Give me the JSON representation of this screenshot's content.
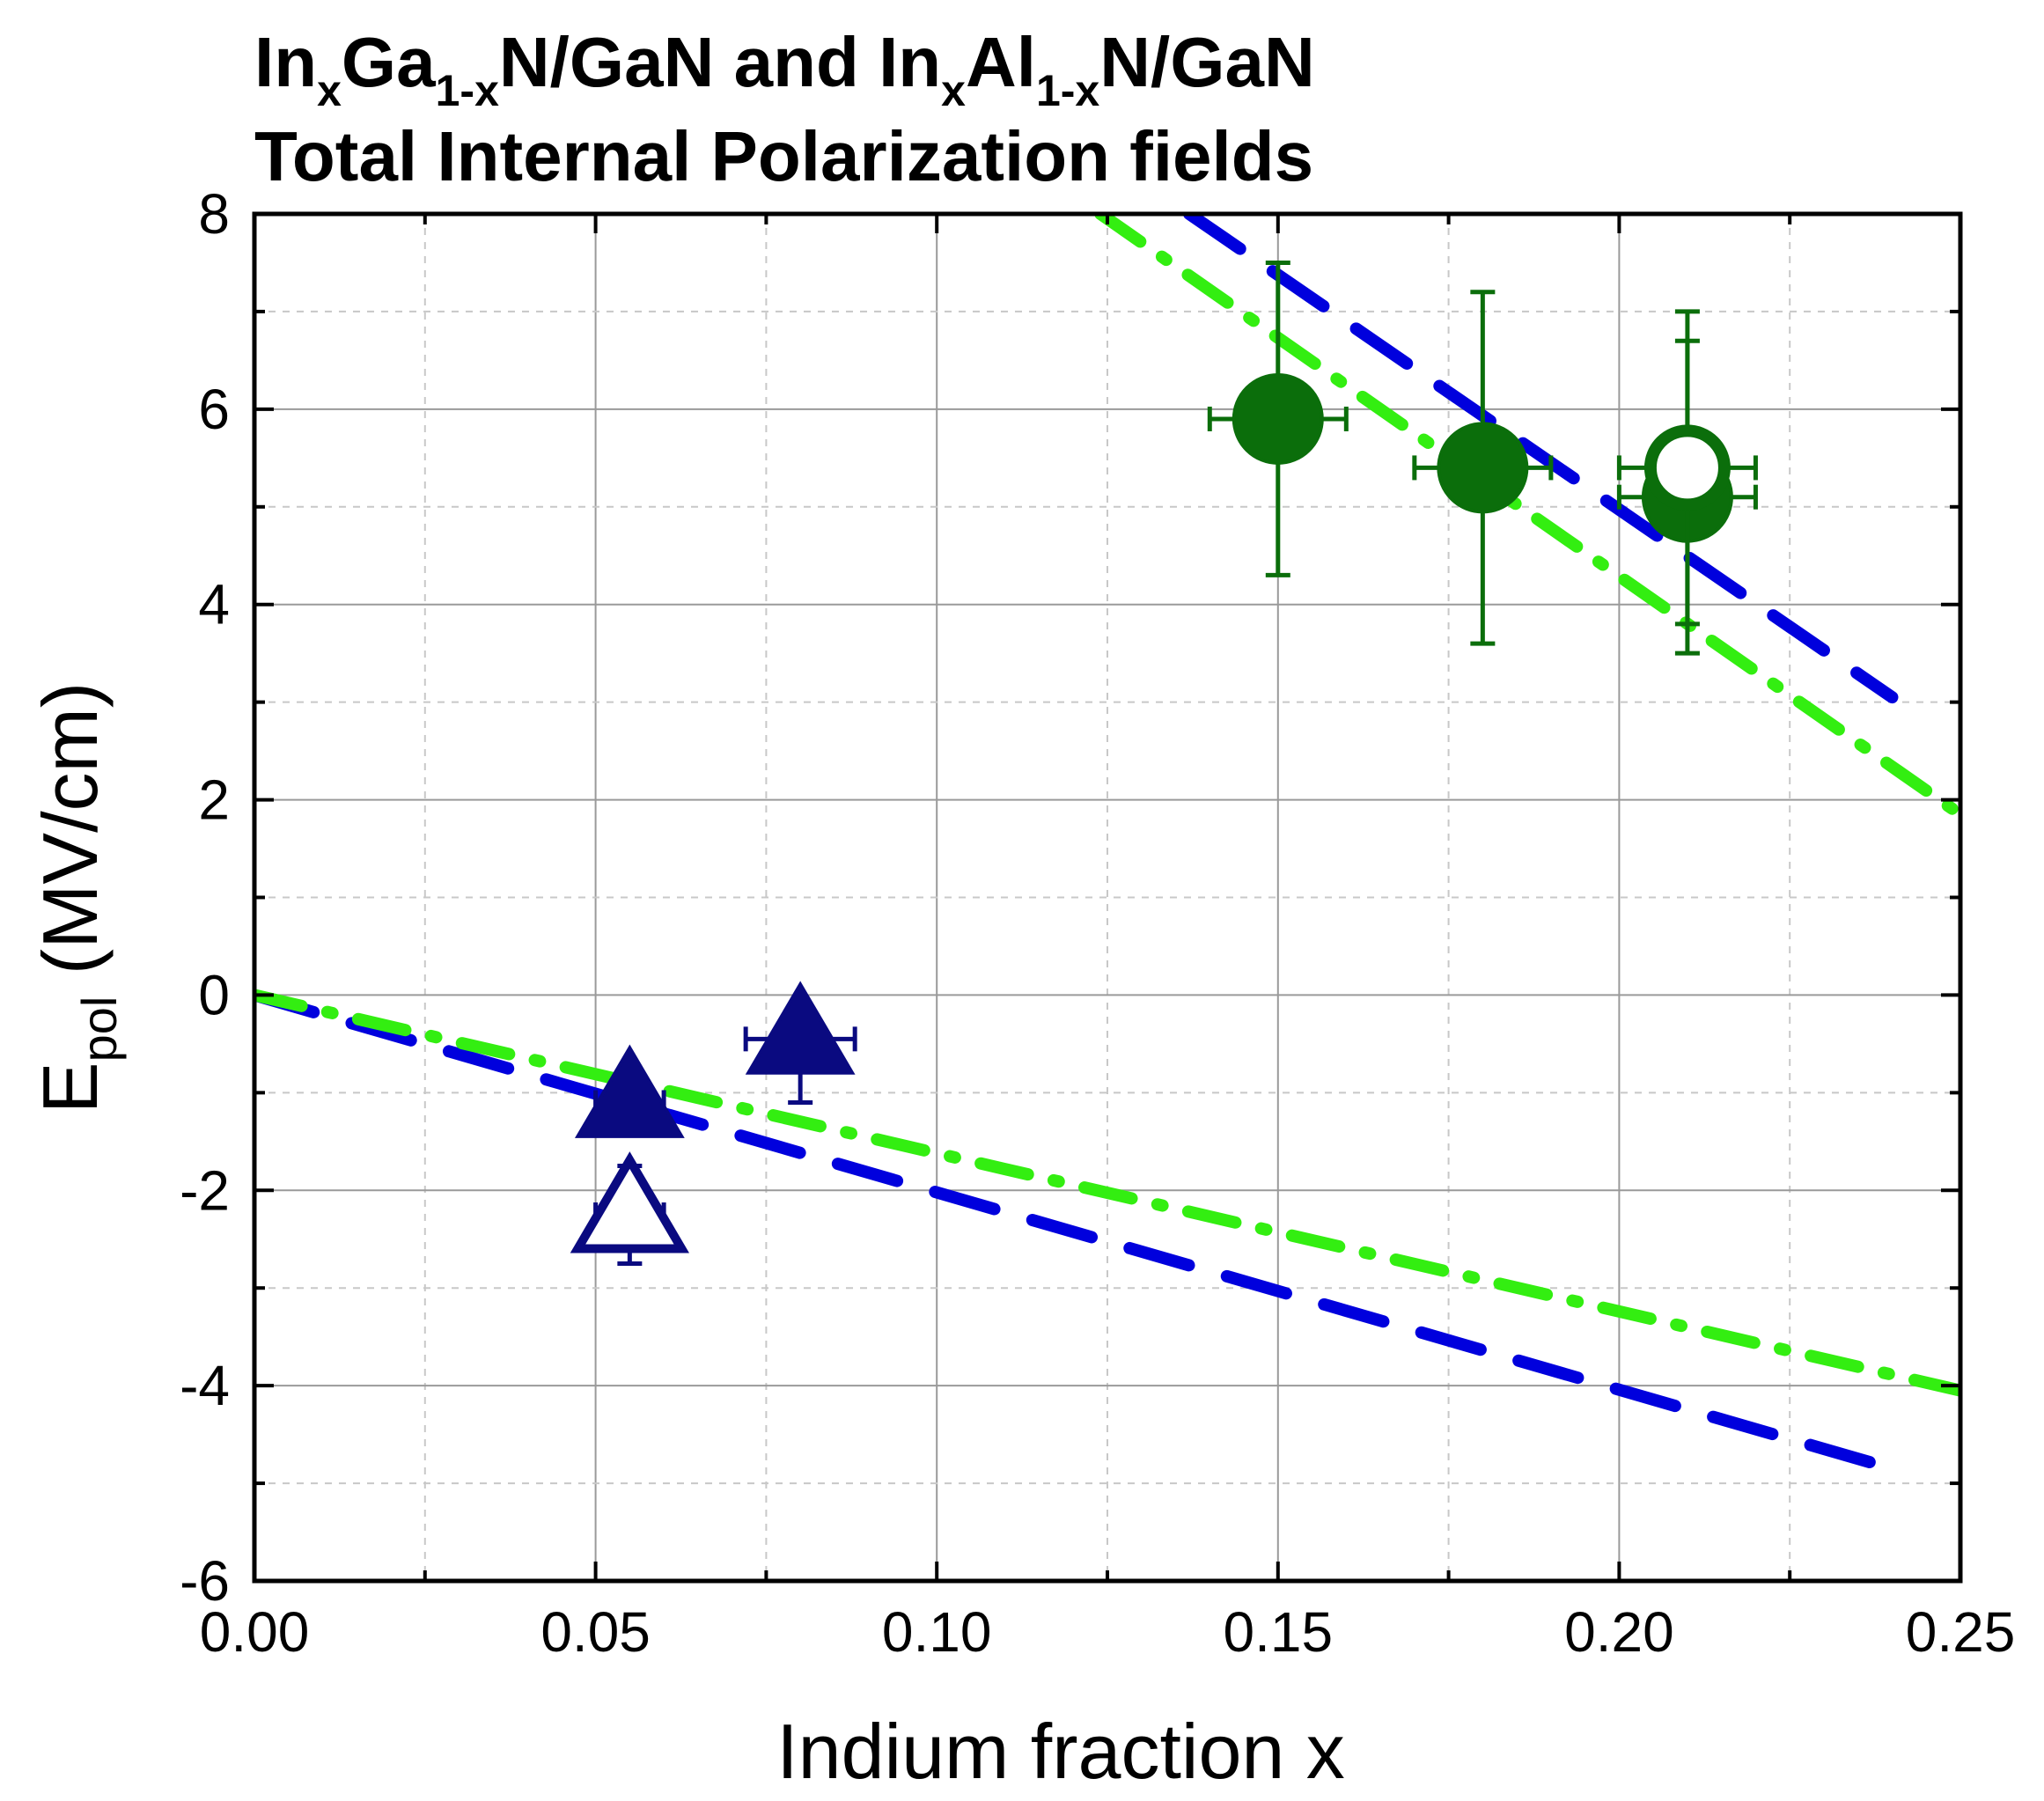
{
  "chart_data": {
    "type": "scatter",
    "title": {
      "line1": [
        {
          "text": "In",
          "sub": false
        },
        {
          "text": "x",
          "sub": true
        },
        {
          "text": "Ga",
          "sub": false
        },
        {
          "text": "1-x",
          "sub": true
        },
        {
          "text": "N/GaN and In",
          "sub": false
        },
        {
          "text": "x",
          "sub": true
        },
        {
          "text": "Al",
          "sub": false
        },
        {
          "text": "1-x",
          "sub": true
        },
        {
          "text": "N/GaN",
          "sub": false
        }
      ],
      "line2": "Total Internal Polarization fields"
    },
    "xlabel": "Indium fraction x",
    "ylabel": {
      "main": "E",
      "sub": "pol",
      "unit": " (MV/cm)"
    },
    "xlim": [
      0.0,
      0.25
    ],
    "ylim": [
      -6,
      8
    ],
    "xticks": [
      0.0,
      0.05,
      0.1,
      0.15,
      0.2,
      0.25
    ],
    "xtick_labels": [
      "0.00",
      "0.05",
      "0.10",
      "0.15",
      "0.20",
      "0.25"
    ],
    "yticks": [
      -6,
      -4,
      -2,
      0,
      2,
      4,
      6,
      8
    ],
    "ytick_labels": [
      "-6",
      "-4",
      "-2",
      "0",
      "2",
      "4",
      "6",
      "8"
    ],
    "grid": true,
    "colors": {
      "blue_line": "#0000dd",
      "green_line": "#33ee11",
      "navy_marker": "#0a0a80",
      "green_marker": "#0b6e0b",
      "grid_major": "#9a9a9a",
      "grid_minor": "#c8c8c8"
    },
    "lines": [
      {
        "name": "InGaN blue dashed",
        "style": "dash",
        "color_key": "blue_line",
        "x": [
          0.0,
          0.24
        ],
        "y": [
          0.0,
          -4.85
        ]
      },
      {
        "name": "InGaN green dash-dot",
        "style": "dashdot",
        "color_key": "green_line",
        "x": [
          0.0,
          0.25
        ],
        "y": [
          0.0,
          -4.05
        ]
      },
      {
        "name": "InAlN blue dashed",
        "style": "dash",
        "color_key": "blue_line",
        "x": [
          0.137,
          0.24
        ],
        "y": [
          8.0,
          3.05
        ]
      },
      {
        "name": "InAlN green dash-dot",
        "style": "dashdot",
        "color_key": "green_line",
        "x": [
          0.124,
          0.25
        ],
        "y": [
          8.0,
          1.85
        ]
      }
    ],
    "points": [
      {
        "series": "InGaN filled",
        "marker": "triangle",
        "filled": true,
        "color_key": "navy_marker",
        "x": 0.055,
        "y": -1.1,
        "xerr": 0.005,
        "yerr_low": 0.2,
        "yerr_high": 0.2
      },
      {
        "series": "InGaN filled",
        "marker": "triangle",
        "filled": true,
        "color_key": "navy_marker",
        "x": 0.08,
        "y": -0.45,
        "xerr": 0.008,
        "yerr_low": 0.65,
        "yerr_high": 0.0
      },
      {
        "series": "InGaN open",
        "marker": "triangle",
        "filled": false,
        "color_key": "navy_marker",
        "x": 0.055,
        "y": -2.25,
        "xerr": 0.005,
        "yerr_low": 0.5,
        "yerr_high": 0.5
      },
      {
        "series": "InAlN filled",
        "marker": "circle",
        "filled": true,
        "color_key": "green_marker",
        "x": 0.15,
        "y": 5.9,
        "xerr": 0.01,
        "yerr_low": 1.6,
        "yerr_high": 1.6
      },
      {
        "series": "InAlN filled",
        "marker": "circle",
        "filled": true,
        "color_key": "green_marker",
        "x": 0.18,
        "y": 5.4,
        "xerr": 0.01,
        "yerr_low": 1.8,
        "yerr_high": 1.8
      },
      {
        "series": "InAlN filled",
        "marker": "circle",
        "filled": true,
        "color_key": "green_marker",
        "x": 0.21,
        "y": 5.1,
        "xerr": 0.01,
        "yerr_low": 1.3,
        "yerr_high": 1.6
      },
      {
        "series": "InAlN open",
        "marker": "circle",
        "filled": false,
        "color_key": "green_marker",
        "x": 0.21,
        "y": 5.4,
        "xerr": 0.01,
        "yerr_low": 1.9,
        "yerr_high": 1.6
      }
    ]
  }
}
